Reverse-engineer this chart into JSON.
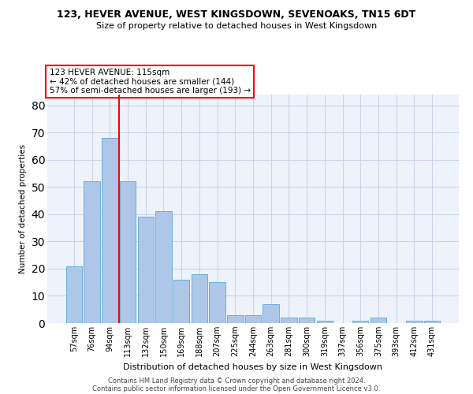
{
  "title1": "123, HEVER AVENUE, WEST KINGSDOWN, SEVENOAKS, TN15 6DT",
  "title2": "Size of property relative to detached houses in West Kingsdown",
  "xlabel": "Distribution of detached houses by size in West Kingsdown",
  "ylabel": "Number of detached properties",
  "categories": [
    "57sqm",
    "76sqm",
    "94sqm",
    "113sqm",
    "132sqm",
    "150sqm",
    "169sqm",
    "188sqm",
    "207sqm",
    "225sqm",
    "244sqm",
    "263sqm",
    "281sqm",
    "300sqm",
    "319sqm",
    "337sqm",
    "356sqm",
    "375sqm",
    "393sqm",
    "412sqm",
    "431sqm"
  ],
  "values": [
    21,
    52,
    68,
    52,
    39,
    41,
    16,
    18,
    15,
    3,
    3,
    7,
    2,
    2,
    1,
    0,
    1,
    2,
    0,
    1,
    1
  ],
  "bar_color": "#aec7e8",
  "bar_edge_color": "#6baed6",
  "grid_color": "#c8d4e8",
  "vline_color": "red",
  "annotation_line1": "123 HEVER AVENUE: 115sqm",
  "annotation_line2": "← 42% of detached houses are smaller (144)",
  "annotation_line3": "57% of semi-detached houses are larger (193) →",
  "annotation_box_color": "white",
  "annotation_box_edge_color": "red",
  "ylim": [
    0,
    84
  ],
  "yticks": [
    0,
    10,
    20,
    30,
    40,
    50,
    60,
    70,
    80
  ],
  "footer1": "Contains HM Land Registry data © Crown copyright and database right 2024.",
  "footer2": "Contains public sector information licensed under the Open Government Licence v3.0.",
  "bg_color": "#eef2fa"
}
